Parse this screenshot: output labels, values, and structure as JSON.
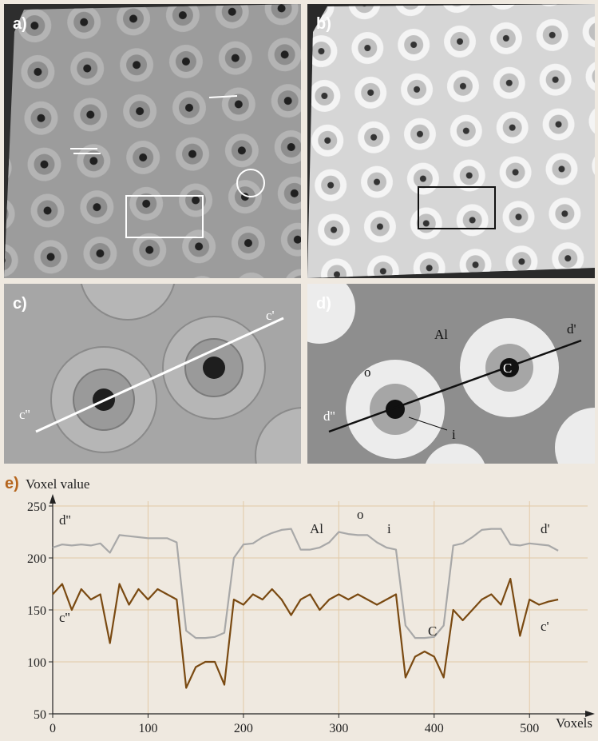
{
  "panels": {
    "a": {
      "label": "a)"
    },
    "b": {
      "label": "b)"
    },
    "c": {
      "label": "c)",
      "annotations": [
        "c'",
        "c''"
      ]
    },
    "d": {
      "label": "d)",
      "annotations": [
        "d'",
        "d''",
        "Al",
        "o",
        "i",
        "C"
      ]
    }
  },
  "chart_data": {
    "type": "line",
    "panel_label": "e)",
    "y_label": "Voxel value",
    "x_label": "Voxels",
    "xlim": [
      0,
      540
    ],
    "xticks": [
      0,
      100,
      200,
      300,
      400,
      500
    ],
    "ylim": [
      50,
      250
    ],
    "yticks": [
      50,
      100,
      150,
      200,
      250
    ],
    "grid": true,
    "x": [
      0,
      10,
      20,
      30,
      40,
      50,
      60,
      70,
      80,
      90,
      100,
      110,
      120,
      130,
      140,
      150,
      160,
      170,
      180,
      190,
      200,
      210,
      220,
      230,
      240,
      250,
      260,
      270,
      280,
      290,
      300,
      310,
      320,
      330,
      340,
      350,
      360,
      370,
      380,
      390,
      400,
      410,
      420,
      430,
      440,
      450,
      460,
      470,
      480,
      490,
      500,
      510,
      520,
      530
    ],
    "series": [
      {
        "name": "d''",
        "color": "#a8a8a8",
        "values": [
          210,
          213,
          212,
          213,
          212,
          214,
          205,
          222,
          221,
          220,
          219,
          219,
          219,
          215,
          130,
          123,
          123,
          124,
          128,
          200,
          213,
          214,
          220,
          224,
          227,
          228,
          208,
          208,
          210,
          215,
          225,
          223,
          222,
          222,
          215,
          210,
          208,
          135,
          123,
          123,
          124,
          135,
          212,
          214,
          220,
          227,
          228,
          228,
          213,
          212,
          214,
          213,
          212,
          207
        ]
      },
      {
        "name": "c''",
        "color": "#7a4a12",
        "values": [
          165,
          175,
          150,
          170,
          160,
          165,
          118,
          175,
          155,
          170,
          160,
          170,
          165,
          160,
          75,
          95,
          100,
          100,
          78,
          160,
          155,
          165,
          160,
          170,
          160,
          145,
          160,
          165,
          150,
          160,
          165,
          160,
          165,
          160,
          155,
          160,
          165,
          85,
          105,
          110,
          105,
          85,
          150,
          140,
          150,
          160,
          165,
          155,
          180,
          125,
          160,
          155,
          158,
          160
        ]
      }
    ],
    "annotations": [
      "d'",
      "c'",
      "Al",
      "o",
      "i",
      "C"
    ]
  }
}
